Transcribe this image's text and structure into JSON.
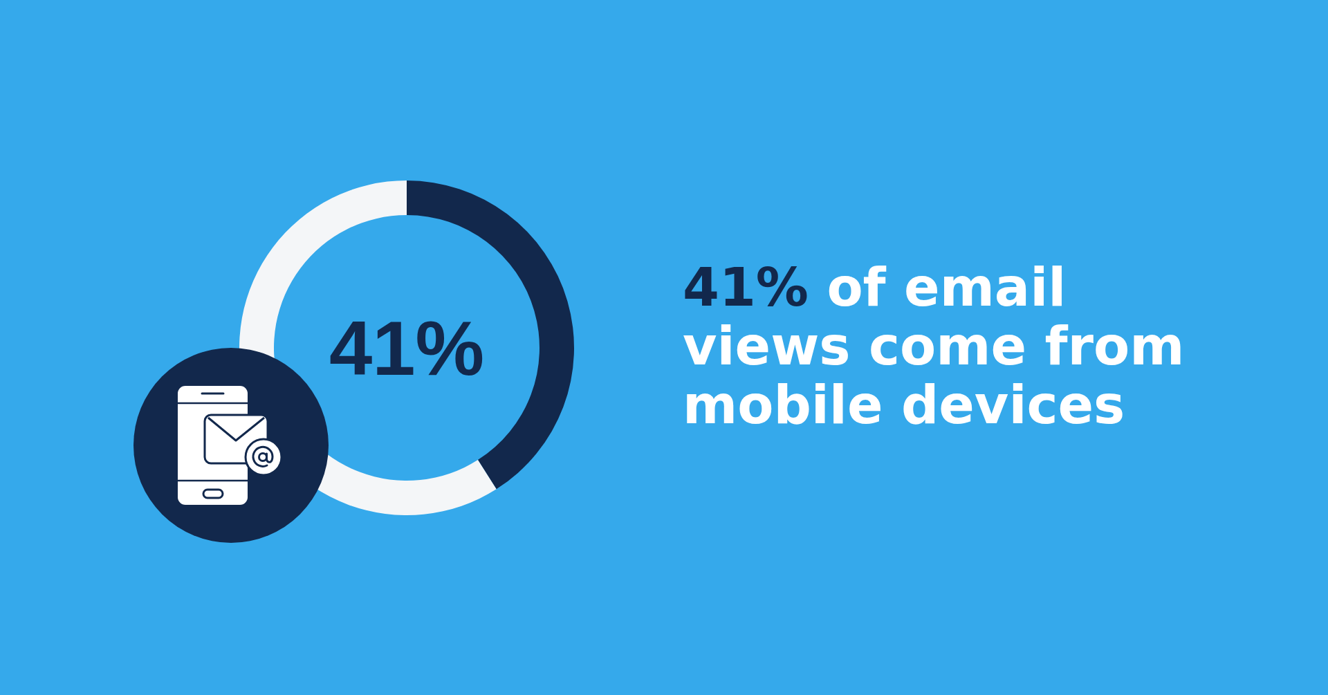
{
  "chart_data": {
    "type": "donut",
    "title": "41% of email views come from mobile devices",
    "categories": [
      null,
      null
    ],
    "values": [
      41,
      59
    ],
    "colors": [
      "#12284c",
      "#f4f6f8"
    ],
    "value_labels": [
      "41%",
      null
    ]
  }
}
